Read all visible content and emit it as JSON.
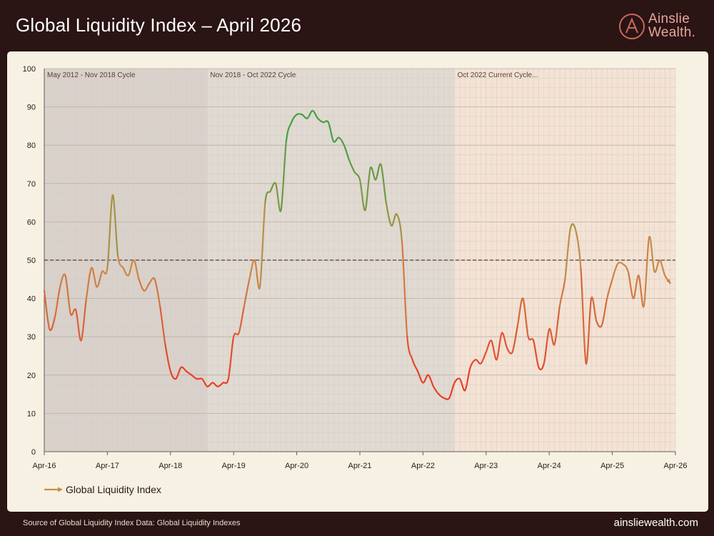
{
  "header": {
    "title": "Global Liquidity Index – April 2026"
  },
  "logo": {
    "line1": "Ainslie",
    "line2": "Wealth",
    "dot": "."
  },
  "footer": {
    "source": "Source of Global Liquidity Index Data: Global Liquidity Indexes",
    "website": "ainsliewealth.com"
  },
  "colors": {
    "background": "#2a1414",
    "panel": "#f6f1e3",
    "low": "#e8402a",
    "mid": "#c98d48",
    "high": "#45a046",
    "reference_line": "#5a3a2c"
  },
  "chart_data": {
    "type": "line",
    "title": "",
    "xlabel": "",
    "ylabel": "",
    "ylim": [
      0,
      100
    ],
    "yticks": [
      0,
      10,
      20,
      30,
      40,
      50,
      60,
      70,
      80,
      90,
      100
    ],
    "xlim": [
      "2016-04",
      "2026-04"
    ],
    "xticks": [
      "Apr-16",
      "Apr-17",
      "Apr-18",
      "Apr-19",
      "Apr-20",
      "Apr-21",
      "Apr-22",
      "Apr-23",
      "Apr-24",
      "Apr-25",
      "Apr-26"
    ],
    "grid": true,
    "reference_line": 50,
    "legend": {
      "position": "bottom-left",
      "label": "Global Liquidity Index"
    },
    "cycles": [
      {
        "label": "May 2012 - Nov 2018 Cycle",
        "start": "2016-04",
        "end": "2018-11",
        "shade": "#cfc6c3"
      },
      {
        "label": "Nov 2018 - Oct 2022 Cycle",
        "start": "2018-11",
        "end": "2022-10",
        "shade": "#d8d2cc"
      },
      {
        "label": "Oct 2022 Current Cycle...",
        "start": "2022-10",
        "end": "2026-04",
        "shade": "#f3ddd0"
      }
    ],
    "series": [
      {
        "name": "Global Liquidity Index",
        "x": [
          "2016-04",
          "2016-05",
          "2016-06",
          "2016-07",
          "2016-08",
          "2016-09",
          "2016-10",
          "2016-11",
          "2016-12",
          "2017-01",
          "2017-02",
          "2017-03",
          "2017-04",
          "2017-05",
          "2017-06",
          "2017-07",
          "2017-08",
          "2017-09",
          "2017-10",
          "2017-11",
          "2017-12",
          "2018-01",
          "2018-02",
          "2018-03",
          "2018-04",
          "2018-05",
          "2018-06",
          "2018-07",
          "2018-08",
          "2018-09",
          "2018-10",
          "2018-11",
          "2018-12",
          "2019-01",
          "2019-02",
          "2019-03",
          "2019-04",
          "2019-05",
          "2019-06",
          "2019-07",
          "2019-08",
          "2019-09",
          "2019-10",
          "2019-11",
          "2019-12",
          "2020-01",
          "2020-02",
          "2020-03",
          "2020-04",
          "2020-05",
          "2020-06",
          "2020-07",
          "2020-08",
          "2020-09",
          "2020-10",
          "2020-11",
          "2020-12",
          "2021-01",
          "2021-02",
          "2021-03",
          "2021-04",
          "2021-05",
          "2021-06",
          "2021-07",
          "2021-08",
          "2021-09",
          "2021-10",
          "2021-11",
          "2021-12",
          "2022-01",
          "2022-02",
          "2022-03",
          "2022-04",
          "2022-05",
          "2022-06",
          "2022-07",
          "2022-08",
          "2022-09",
          "2022-10",
          "2022-11",
          "2022-12",
          "2023-01",
          "2023-02",
          "2023-03",
          "2023-04",
          "2023-05",
          "2023-06",
          "2023-07",
          "2023-08",
          "2023-09",
          "2023-10",
          "2023-11",
          "2023-12",
          "2024-01",
          "2024-02",
          "2024-03",
          "2024-04",
          "2024-05",
          "2024-06",
          "2024-07",
          "2024-08",
          "2024-09",
          "2024-10",
          "2024-11",
          "2024-12",
          "2025-01",
          "2025-02",
          "2025-03",
          "2025-04",
          "2025-05",
          "2025-06",
          "2025-07",
          "2025-08",
          "2025-09",
          "2025-10",
          "2025-11",
          "2025-12",
          "2026-01",
          "2026-02",
          "2026-03"
        ],
        "values": [
          42,
          32,
          35,
          43,
          46,
          36,
          37,
          29,
          40,
          48,
          43,
          47,
          48,
          67,
          51,
          48,
          46,
          50,
          45,
          42,
          44,
          45,
          38,
          28,
          21,
          19,
          22,
          21,
          20,
          19,
          19,
          17,
          18,
          17,
          18,
          19,
          30,
          31,
          38,
          45,
          50,
          43,
          65,
          68,
          70,
          63,
          81,
          86,
          88,
          88,
          87,
          89,
          87,
          86,
          86,
          81,
          82,
          80,
          76,
          73,
          71,
          63,
          74,
          71,
          75,
          65,
          59,
          62,
          55,
          30,
          24,
          21,
          18,
          20,
          17,
          15,
          14,
          14,
          18,
          19,
          16,
          22,
          24,
          23,
          26,
          29,
          24,
          31,
          27,
          26,
          33,
          40,
          30,
          29,
          22,
          23,
          32,
          28,
          38,
          45,
          58,
          58,
          48,
          23,
          40,
          34,
          33,
          40,
          45,
          49,
          49,
          47,
          40,
          46,
          38,
          56,
          47,
          50,
          46,
          44
        ]
      }
    ]
  }
}
